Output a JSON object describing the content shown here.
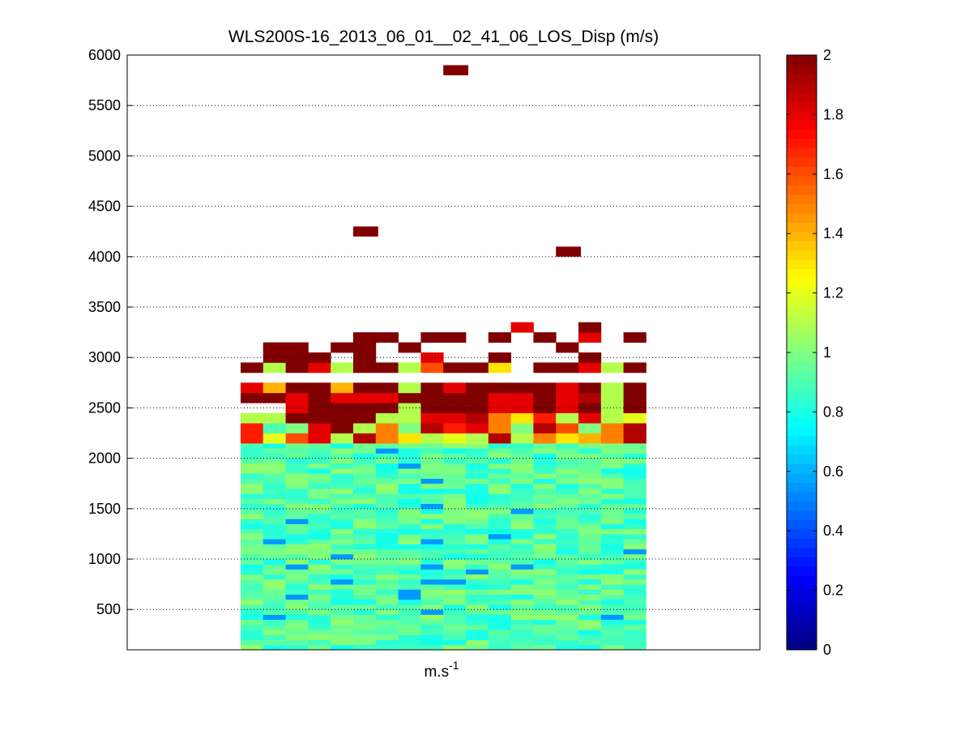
{
  "chart_data": {
    "type": "heatmap",
    "title": "WLS200S-16_2013_06_01__02_41_06_LOS_Disp (m/s)",
    "xlabel_base": "m.s",
    "xlabel_exp": "-1",
    "ylabel": "",
    "ylim": [
      100,
      6000
    ],
    "yticks": [
      500,
      1000,
      1500,
      2000,
      2500,
      3000,
      3500,
      4000,
      4500,
      5000,
      5500,
      6000
    ],
    "grid": "horizontal dotted",
    "colormap": "jet",
    "color_limits": [
      0,
      2
    ],
    "colorbar_ticks": [
      0,
      0.2,
      0.4,
      0.6,
      0.8,
      1,
      1.2,
      1.4,
      1.6,
      1.8,
      2
    ],
    "columns": 18,
    "range_gate_m": 50,
    "column_strings": [
      "LLLLLLLLLLLLLLLLLLLLLLLLLLLLLLLLLLLLLLLLLNRMMMMMMMMMMMMMMMMMMMMMMMMMMMMMMMMMMMMMMMMMMMMMMMMMMMMMMMMMMMMMMMMMMMMMMMMMMMMMMMMMMMMMMMMMMMMMMMMMMMMMMMMMMMMMMMMMMMMMMMMMMMMMMMMMMMMMMMMMMMMMMMMMMMMMMMMMMMMMMMMMMMMMMMMMMMMMMMMMMMMMMMMMMMMMMMMMMMMMMMMMMMMMMMMMMMMMMMMMMMMMMMMM",
      "LLLLLLLLLLLLLLLLLLLLLLLLLLLLLLLLLLLLLLLLLNRMMMMMMMMMMMMMMMMMMMMMMMMMMMMMMMMMMMMMMMMMMMMMMMMMMMMMMMMMMMMMMMMMMMMMMMMMMMMMMMMMMMMMMMMMMMMMMMMMMMMMMMMMMMMMMMMMMMMMMMMMMMMMMMMMMMMMMMMMMMMMMMMMMMMMMMMMMMMMMMMMMMMMMMMMMMMMMMMMMMMMMMMMMMMMMMMMMMMMMMMMMMMMMMMMMMMMMMMMMMMMMMMMM",
      "LLLLLLLLLLLLLLLLLLLLLLLLLLLLLLLLLLLLLLLLLHIMMMMMMMMMMMMMMMMMMMMMMMMMMMMMMMMMMMMMMMMMMMMMMMMMMMMMMMMMMMMMMMMMMMMMMMMMMMMMMMMMMMMMMMMMMMMMMMMMMMMMMMMMMMMMMMMMMMMMMMMMMMMMMMMMMMMMMMMMMMMMMMMMMMMMMMMMMMMMMMMMMMMMMMMMMMMMMMMMMMMMMMMMMMMMMMMMMMMMMMMMMMMMMMMMMMMMMMMMMMMMMMMMM",
      "LLLLLLLLLLLLLLLLLLLLLLLLLLLLLLLLLLLLLLLLLLMMMMMMMMMMMMMMMMMMMMMMMMMMMMMMMMMMMMMMMMMMMMMMMMMMMMMMMMMMMMMMMMMMMMMMMMMMMMMMMMMMMMMMMMMMMMMMMMMMMMMMMMMMMMMMMMMMMMMMMMMMMMMMMMMMMMMMMMMMMMMMMMMMMMMMMMMMMMMMMMMMMMMMMMMMMMMMMMMMMMMMMMMMMMMMMMMMMMMMMMMMMMMMMMMMMMMMMMMMMMMMMMMMM",
      "LLLLLLLLLLLLLLLLLLLLLLLLLLLLLLLLLLLLLLLLLLMMMMMMMMMMMMMMMMMMMMMMMMMMMMMMMMMMMMMMMMMMMMMMMMMMMMMMMMMMMMMMMMMMMMMMMMMMMMMMMMMMMMMMMMMMMMMMMMMMMMMMMMMMMMMMMMMMMMMMMMMMMMMMMMMMMMMMMMMMMMMMMMMMMMMMMMMMMMMMMMMMMMMMMMMMMMMMMMMMMMMMMMMMMMMMMMMMMMMMMMMMMMMMMMMMMMMMMMMMMMMMMMMMM",
      "LLLLLLLLLLLLLLLLLLLLLLLLLLLLLLLLLLLLLLLLLLMMMMMMMMMMMMMMMMMMMMMMMMMMMMMMMMMMMMMMMMMMMMMMMMMMMMMMMMMMMMMMMMMMMMMMMMMMMMMMMMMMMMMMMMMMMMMMMMMMMMMMMMMMMMMMMMMMMMMMMMMMMMMMMMMMMMMMMMMMMMMMMMMMMMMMMMMMMMMMMMMMMMMMMMMMMMMMMMMMMMMMMMMMMMMMMMMMMMMMMMMMMMMMMMMMMMMMMMMMMMMMMMMMM",
      "LLLLLLLLLLLLLLLLLLLLLLLLLLLLLLLLLLLLLLLLLLMMMMMMMMMMMMMMMMMMMMMMMMMMMMMMMMMMMMMMMMMMMMMMMMMMMMMMMMMMMMMMMMMMMMMMMMMMMMMMMMMMMMMMMMMMMMMMMMMMMMMMMMMMMMMMMMMMMMMMMMMMMMMMMMMMMMMMMMMMMMMMMMMMMMMMMMMMMMMMMMMMMMMMMMMMMMMMMMMMMMMMMMMMMMMMMMMMMMMMMMMMMMMMMMMMMMMMMMMMMMMMMMMMM",
      "LLLLLLLLLLLLLLLLLLLLLLLLLLLLLLLLLLLLLLLLLLMMMMMMMMMMMMMMMMMMMMMMMMMMMMMMMMMMMMMMMMMMMMMMMMMMMMMMMMMMMMMMMMMMMMMMMMMMMMMMMMMMMMMMMMMMMMMMMMMMMMMMMMMMMMMMMMMMMMMMMMMMMMMMMMMMMMMMMMMMMMMMMMMMMMMMMMMMMMMMMMMMMMMMMMMMMMMMMMMMMMMMMMMMMMMMMMMMMMMMMMMMMMMMMMMMMMMMMMMMMMMMMMMMM",
      "LLLLLLLLLLLLLLLLLLLLLLLLLLLLLLLLLLLLLLLLLLMMMMMMMMMMMMMMMMMMMMMMMMMMMMMMMMMMMMMMMMMMMMMMMMMMMMMMMMMMMMMMMMMMMMMMMMMMMMMMMMMMMMMMMMMMMMMMMMMMMMMMMMMMMMMMMMMMMMMMMMMMMMMMMMMMMMMMMMMMMMMMMMMMMMMMMMMMMMMMMMMMMMMMMMMMMMMMMMMMMMMMMMMMMMMMMMMMMMMMMMMMMMMMMMMMMMMMMMMMMMMMMMMMM",
      "LLLLLLLLLLLLLLLLLLLLLLLLLLLLLLLLLLLLLLLLLLMMMMMMMMMMMMMMMMMMMMMMMMMMMMMMMMMMMMMMMMMMMMMMMMMMMMMMMMMMMMMMMMMMMMMMMMMMMMMMMMMMMMMMMMMMMMMMMMMMMMMMMMMMMMMMMMMMMMMMMMMMMMMMMMMMMMMMMMMMMMMMMMMMMMMMMMMMMMMMMMMMMMMMMMMMMMMMMMMMMMMMMMMMMMMMMMMMMMMMMMMMMMMMMMMMMMMMMMMMMMMMMMMMM",
      "LLLLLLLLLLLLLLLLLLLLLLLLLLLLLLLLLLLLLLLLLLMMMMMMMMMMMMMMMMMMMMMMMMMMMMMMMMMMMMMMMMMMMMMMMMMMMMMMMMMMMMMMMMMMMMMMMMMMMMMMMMMMMMMMMMMMMMMMMMMMMMMMMMMMMMMMMMMMMMMMMMMMMMMMMMMMMMMMMMMMMMMMMMMMMMMMMMMMMMMMMMMMMMMMMMMMMMMMMMMMMMMMMMMMMMMMMMMMMMMMMMMMMMMMMMMMMMMMMMMMMMMMMMMMM",
      "LLLLLLLLLLLLLLLLLLLLLLLLLLLLLLLLLLLLLLLLLLMMMMMMMMMMMMMMMMMMMMMMMMMMMMMMMMMMMMMMMMMMMMMMMMMMMMMMMMMMMMMMMMMMMMMMMMMMMMMMMMMMMMMMMMMMMMMMMMMMMMMMMMMMMMMMMMMMMMMMMMMMMMMMMMMMMMMMMMMMMMMMMMMMMMMMMMMMMMMMMMMMMMMMMMMMMMMMMMMMMMMMMMMMMMMMMMMMMMMMMMMMMMMMMMMMMMMMMMMMMMMMMMMMM",
      "LLLLLLLLLLLLLLLLLLLLLLLLLLLLLLLLLLLLLLLLLLMMMMMMMMMMMMMMMMMMMMMMMMMMMMMMMMMMMMMMMMMMMMMMMMMMMMMMMMMMMMMMMMMMMMMMMMMMMMMMMMMMMMMMMMMMMMMMMMMMMMMMMMMMMMMMMMMMMMMMMMMMMMMMMMMMMMMMMMMMMMMMMMMMMMMMMMMMMMMMMMMMMMMMMMMMMMMMMMMMMMMMMMMMMMMMMMMMMMMMMMMMMMMMMMMMMMMMMMMMMMMMMMMMM",
      "LLLLLLLLLLLLLLLLLLLLLLLLLLLLLLLLLLLLLLLLLLMMMMMMMMMMMMMMMMMMMMMMMMMMMMMMMMMMMMMMMMMMMMMMMMMMMMMMMMMMMMMMMMMMMMMMMMMMMMMMMMMMMMMMMMMMMMMMMMMMMMMMMMMMMMMMMMMMMMMMMMMMMMMMMMMMMMMMMMMMMMMMMMMMMMMMMMMMMMMMMMMMMMMMMMMMMMMMMMMMMMMMMMMMMMMMMMMMMMMMMMMMMMMMMMMMMMMMMMMMMMMMMMMMM",
      "LLLLLLLLLLLLLLLLLLLLLLLLLLLLLLLLLLLLLLLLLLMMMMMMMMMMMMMMMMMMMMMMMMMMMMMMMMMMMMMMMMMMMMMMMMMMMMMMMMMMMMMMMMMMMMMMMMMMMMMMMMMMMMMMMMMMMMMMMMMMMMMMMMMMMMMMMMMMMMMMMMMMMMMMMMMMMMMMMMMMMMMMMMMMMMMMMMMMMMMMMMMMMMMMMMMMMMMMMMMMMMMMMMMMMMMMMMMMMMMMMMMMMMMMMMMMMMMMMMMMMMMMMMMMM",
      "LLLLLLLLLLLLLLLLLLLLLLLLLLLLLLLLLLLLLLLLLLMMMMMMMMMMMMMMMMMMMMMMMMMMMMMMMMMMMMMMMMMMMMMMMMMMMMMMMMMMMMMMMMMMMMMMMMMMMMMMMMMMMMMMMMMMMMMMMMMMMMMMMMMMMMMMMMMMMMMMMMMMMMMMMMMMMMMMMMMMMMMMMMMMMMMMMMMMMMMMMMMMMMMMMMMMMMMMMMMMMMMMMMMMMMMMMMMMMMMMMMMMMMMMMMMMMMMMMMMMMMMMMMMMM",
      "LLLLLLLLLLLLLLLLLLLLLLLLLLLLLLLLLLLLLLLLLLMMMMMMMMMMMMMMMMMMMMMMMMMMMMMMMMMMMMMMMMMMMMMMMMMMMMMMMMMMMMMMMMMMMMMMMMMMMMMMMMMMMMMMMMMMMMMMMMMMMMMMMMMMMMMMMMMMMMMMMMMMMMMMMMMMMMMMMMMMMMMMMMMMMMMMMMMMMMMMMMMMMMMMMMMMMMMMMMMMMMMMMMMMMMMMMMMMMMMMMMMMMMMMMMMMMMMMMMMMMMMMMMMMM",
      "LLLLLLLLLLLLLLLLLLLLLLLLLLLLLLLLLLLLLLLLLLMMMMMMMMMMMMMMMMMMMMMMMMMMMMMMMMMMMMMMMMMMMMMMMMMMMMMMMMMMMMMMMMMMMMMMMMMMMMMMMMMMMMMMMMMMMMMMMMMMMMMMMMMMMMMMMMMMMMMMMMMMMMMMMMMMMMMMMMMMMMMMMMMMMMMMMMMMMMMMMMMMMMMMMMMMMMMMMMMMMMMMMMMMMMMMMMMMMMMMMMMMMMMMMMMMMMMMMMMMMMMMMMMMM"
    ],
    "note_code": "reserved"
  }
}
